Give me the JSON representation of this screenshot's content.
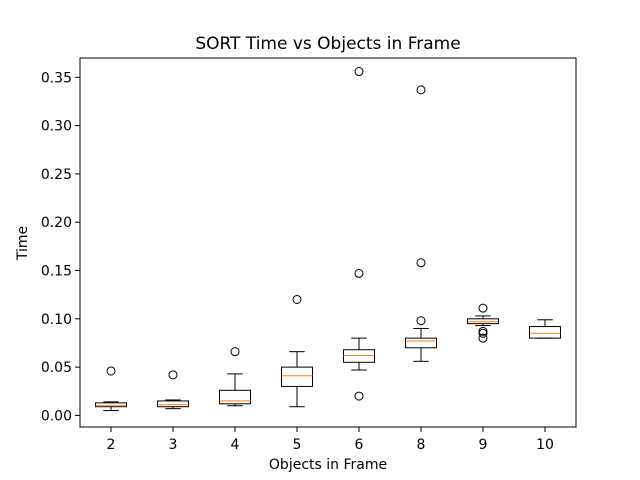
{
  "chart_data": {
    "type": "box",
    "title": "SORT Time vs Objects in Frame",
    "xlabel": "Objects in Frame",
    "ylabel": "Time",
    "ylim": [
      -0.012,
      0.37
    ],
    "yticks": [
      "0.00",
      "0.05",
      "0.10",
      "0.15",
      "0.20",
      "0.25",
      "0.30",
      "0.35"
    ],
    "grid": false,
    "colors": {
      "box": "#000000",
      "median": "#ff7f0e",
      "outlier": "#000000"
    },
    "categories": [
      "2",
      "3",
      "4",
      "5",
      "6",
      "8",
      "9",
      "10"
    ],
    "boxes": [
      {
        "whisker_low": 0.005,
        "q1": 0.009,
        "median": 0.01,
        "q3": 0.013,
        "whisker_high": 0.014,
        "outliers": [
          0.046
        ]
      },
      {
        "whisker_low": 0.007,
        "q1": 0.009,
        "median": 0.011,
        "q3": 0.015,
        "whisker_high": 0.016,
        "outliers": [
          0.042
        ]
      },
      {
        "whisker_low": 0.01,
        "q1": 0.012,
        "median": 0.015,
        "q3": 0.026,
        "whisker_high": 0.043,
        "outliers": [
          0.066
        ]
      },
      {
        "whisker_low": 0.009,
        "q1": 0.03,
        "median": 0.041,
        "q3": 0.05,
        "whisker_high": 0.066,
        "outliers": [
          0.12
        ]
      },
      {
        "whisker_low": 0.047,
        "q1": 0.055,
        "median": 0.062,
        "q3": 0.068,
        "whisker_high": 0.08,
        "outliers": [
          0.02,
          0.147,
          0.356
        ]
      },
      {
        "whisker_low": 0.056,
        "q1": 0.07,
        "median": 0.077,
        "q3": 0.08,
        "whisker_high": 0.09,
        "outliers": [
          0.098,
          0.158,
          0.337
        ]
      },
      {
        "whisker_low": 0.093,
        "q1": 0.095,
        "median": 0.097,
        "q3": 0.1,
        "whisker_high": 0.103,
        "outliers": [
          0.08,
          0.085,
          0.087,
          0.111
        ]
      },
      {
        "whisker_low": 0.08,
        "q1": 0.08,
        "median": 0.085,
        "q3": 0.092,
        "whisker_high": 0.099,
        "outliers": []
      }
    ]
  }
}
